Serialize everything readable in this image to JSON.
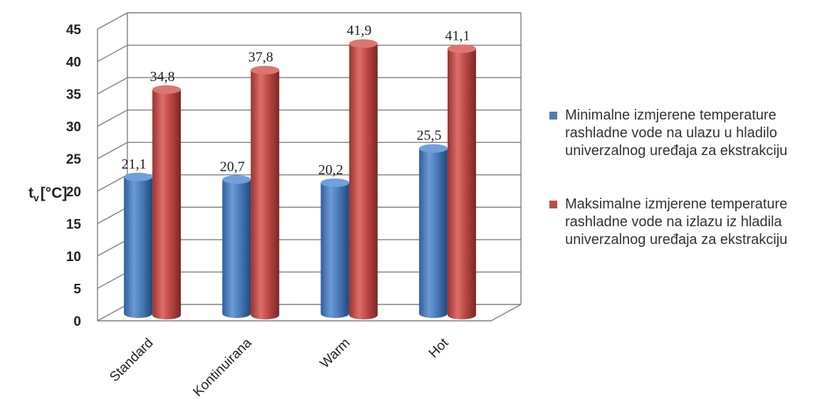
{
  "chart_data": {
    "type": "bar",
    "variant": "3d-cylinder",
    "title": "",
    "xlabel": "",
    "ylabel": "t_v [°C]",
    "ylabel_main": "t",
    "ylabel_sub": "v",
    "ylabel_unit": "[°C]",
    "ylim": [
      0,
      45
    ],
    "yticks": [
      0,
      5,
      10,
      15,
      20,
      25,
      30,
      35,
      40,
      45
    ],
    "grid": true,
    "legend_position": "right",
    "categories": [
      "Standard",
      "Kontinuirana",
      "Warm",
      "Hot"
    ],
    "series": [
      {
        "name": "Minimalne izmjerene temperature rashladne vode na ulazu u hladilo univerzalnog uređaja za ekstrakciju",
        "values": [
          21.1,
          20.7,
          20.2,
          25.5
        ],
        "labels": [
          "21,1",
          "20,7",
          "20,2",
          "25,5"
        ],
        "color": "#4a7ebb"
      },
      {
        "name": "Maksimalne izmjerene temperature rashladne vode na izlazu iz hladila univerzalnog uređaja za ekstrakciju",
        "values": [
          34.8,
          37.8,
          41.9,
          41.1
        ],
        "labels": [
          "34,8",
          "37,8",
          "41,9",
          "41,1"
        ],
        "color": "#be4b48"
      }
    ]
  }
}
